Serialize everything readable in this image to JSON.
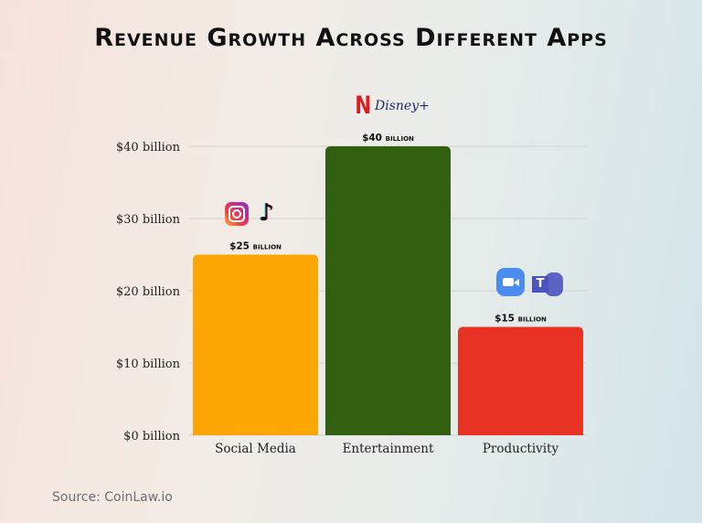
{
  "chart_data": {
    "type": "bar",
    "title": "Revenue Growth Across Different Apps",
    "categories": [
      "Social Media",
      "Entertainment",
      "Productivity"
    ],
    "values": [
      25,
      40,
      15
    ],
    "data_labels": [
      "$25 billion",
      "$40 billion",
      "$15 billion"
    ],
    "colors": [
      "#fba602",
      "#326011",
      "#e83224"
    ],
    "ylim": [
      0,
      40
    ],
    "yticks": [
      0,
      10,
      20,
      30,
      40
    ],
    "ytick_labels": [
      "$0 billion",
      "$10 billion",
      "$20 billion",
      "$30 billion",
      "$40 billion"
    ],
    "grid": true,
    "xlabel": "",
    "ylabel": "",
    "logos": [
      [
        "instagram",
        "tiktok"
      ],
      [
        "netflix",
        "disney-plus"
      ],
      [
        "zoom",
        "microsoft-teams"
      ]
    ],
    "logo_text": {
      "netflix": "N",
      "disney": "Disney+"
    }
  },
  "source": "Source: CoinLaw.io"
}
